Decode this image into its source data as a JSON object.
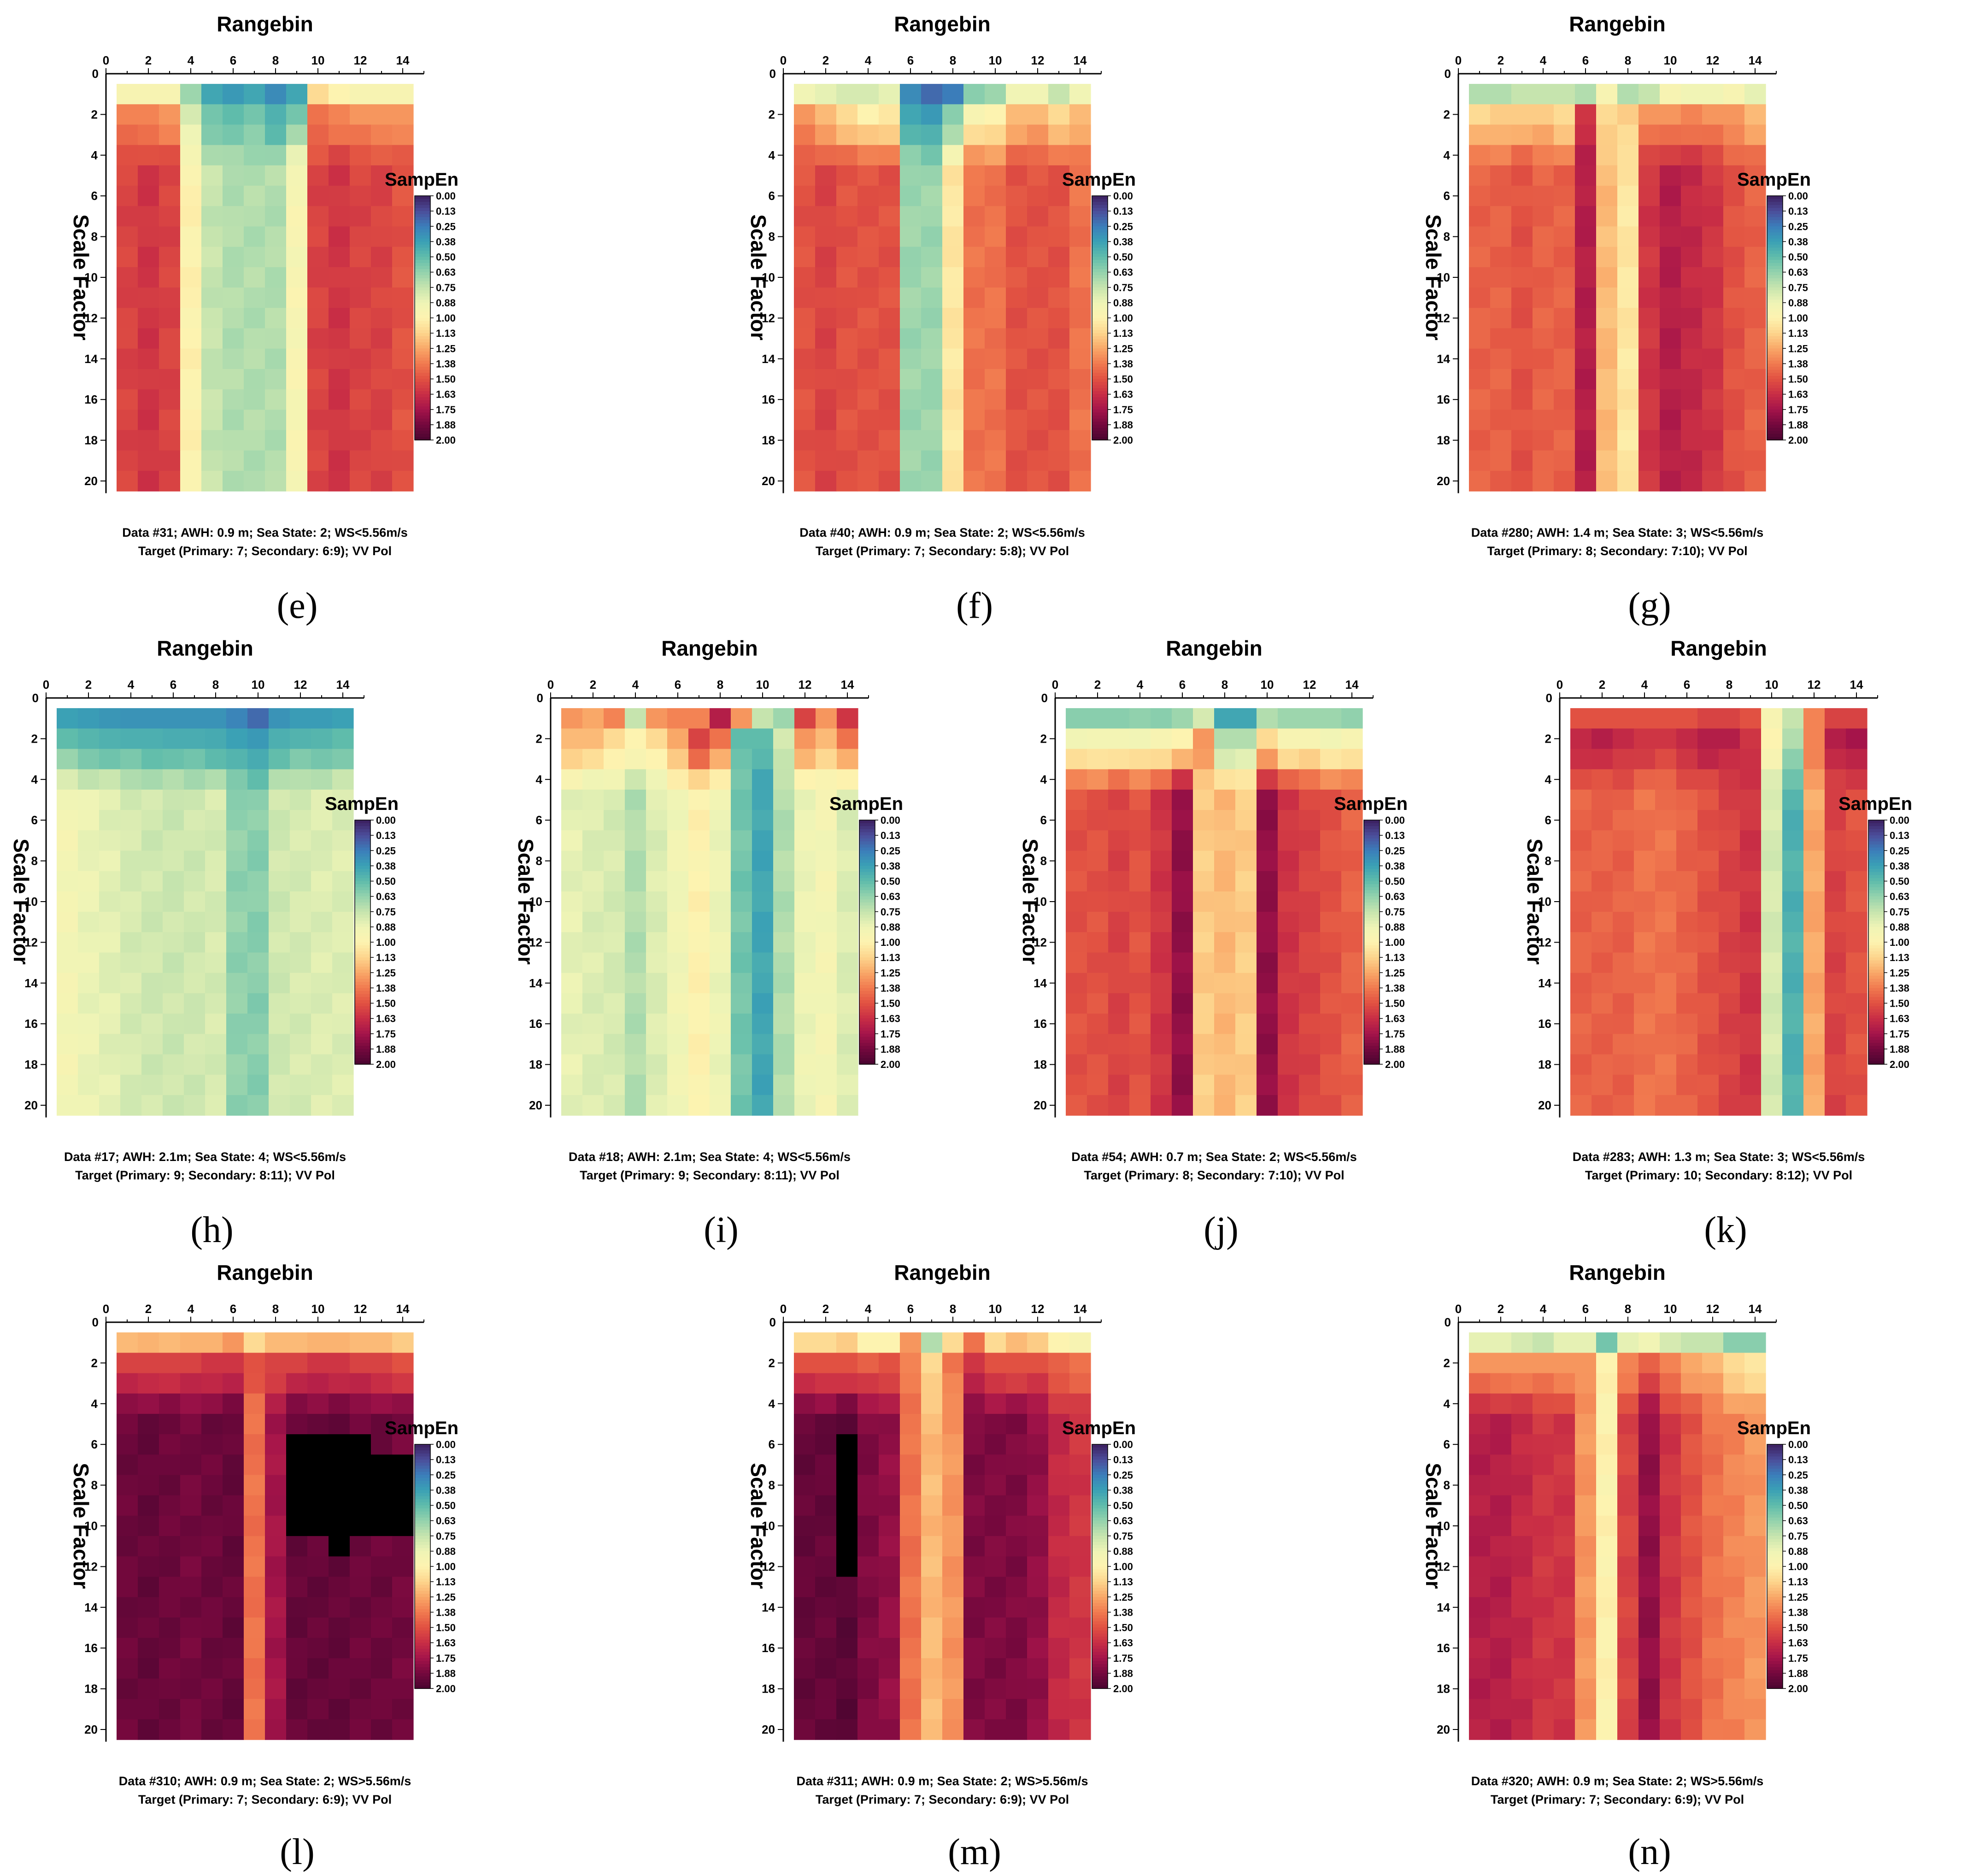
{
  "figure": {
    "colorbar": {
      "title": "SampEn",
      "ticks": [
        "0.00",
        "0.13",
        "0.25",
        "0.38",
        "0.50",
        "0.63",
        "0.75",
        "0.88",
        "1.00",
        "1.13",
        "1.25",
        "1.38",
        "1.50",
        "1.63",
        "1.75",
        "1.88",
        "2.00"
      ],
      "colormap": [
        "#3b1e5e",
        "#4c4d9a",
        "#3b7dba",
        "#3aa0b5",
        "#5fbcab",
        "#93d2ad",
        "#c6e4ae",
        "#eef4b6",
        "#fdf3b0",
        "#fdd58d",
        "#f9a868",
        "#f17a4f",
        "#e15142",
        "#c92e45",
        "#a5144a",
        "#74083d",
        "#4a0530"
      ],
      "missing_color": "#000000"
    },
    "shared": {
      "x_title": "Rangebin",
      "y_title": "Scale Factor",
      "x_ticks": [
        "0",
        "2",
        "4",
        "6",
        "8",
        "10",
        "12",
        "14"
      ],
      "y_ticks": [
        "2",
        "4",
        "6",
        "8",
        "10",
        "12",
        "14",
        "16",
        "18",
        "20"
      ]
    }
  },
  "chart_data": [
    {
      "label": "(e)",
      "type": "heatmap",
      "title": "Rangebin",
      "xlabel": "Rangebin",
      "ylabel": "Scale Factor",
      "xlim": [
        0,
        15
      ],
      "ylim": [
        0,
        20
      ],
      "caption_line1": "Data #31; AWH: 0.9 m; Sea State: 2; WS<5.56m/s",
      "caption_line2": "Target (Primary: 7; Secondary: 6:9); VV Pol",
      "model": {
        "row1": [
          0.95,
          0.95,
          0.95,
          0.65,
          0.4,
          0.35,
          0.4,
          0.3,
          0.4,
          1.1,
          1.0,
          0.95,
          0.95,
          0.95
        ],
        "row2": [
          1.35,
          1.35,
          1.3,
          0.8,
          0.55,
          0.5,
          0.55,
          0.45,
          0.55,
          1.4,
          1.35,
          1.3,
          1.3,
          1.3
        ],
        "deep": [
          1.55,
          1.6,
          1.55,
          1.0,
          0.75,
          0.7,
          0.7,
          0.7,
          0.95,
          1.55,
          1.6,
          1.55,
          1.55,
          1.5
        ]
      }
    },
    {
      "label": "(f)",
      "type": "heatmap",
      "title": "Rangebin",
      "xlabel": "Rangebin",
      "ylabel": "Scale Factor",
      "xlim": [
        0,
        15
      ],
      "ylim": [
        0,
        20
      ],
      "caption_line1": "Data #40; AWH: 0.9 m; Sea State: 2; WS<5.56m/s",
      "caption_line2": "Target (Primary: 7; Secondary: 5:8); VV Pol",
      "model": {
        "row1": [
          0.9,
          0.85,
          0.8,
          0.8,
          0.85,
          0.3,
          0.2,
          0.25,
          0.6,
          0.65,
          0.9,
          0.9,
          0.75,
          0.9
        ],
        "row2": [
          1.3,
          1.2,
          1.1,
          1.0,
          1.05,
          0.4,
          0.35,
          0.6,
          0.95,
          1.0,
          1.2,
          1.2,
          1.1,
          1.2
        ],
        "deep": [
          1.5,
          1.55,
          1.5,
          1.5,
          1.5,
          0.65,
          0.65,
          1.05,
          1.4,
          1.4,
          1.5,
          1.5,
          1.5,
          1.4
        ]
      }
    },
    {
      "label": "(g)",
      "type": "heatmap",
      "title": "Rangebin",
      "xlabel": "Rangebin",
      "ylabel": "Scale Factor",
      "xlim": [
        0,
        15
      ],
      "ylim": [
        0,
        20
      ],
      "caption_line1": "Data #280; AWH: 1.4 m; Sea State: 3; WS<5.56m/s",
      "caption_line2": "Target (Primary: 8; Secondary: 7:10); VV Pol",
      "model": {
        "row1": [
          0.7,
          0.7,
          0.75,
          0.75,
          0.75,
          0.7,
          0.95,
          0.7,
          0.75,
          0.95,
          0.9,
          0.9,
          0.95,
          0.85
        ],
        "row2": [
          1.1,
          1.15,
          1.15,
          1.15,
          1.1,
          1.6,
          1.1,
          1.15,
          1.3,
          1.3,
          1.35,
          1.3,
          1.3,
          1.2
        ],
        "deep": [
          1.45,
          1.45,
          1.5,
          1.45,
          1.45,
          1.7,
          1.2,
          1.05,
          1.6,
          1.7,
          1.65,
          1.6,
          1.5,
          1.45
        ]
      }
    },
    {
      "label": "(h)",
      "type": "heatmap",
      "title": "Rangebin",
      "xlabel": "Rangebin",
      "ylabel": "Scale Factor",
      "xlim": [
        0,
        15
      ],
      "ylim": [
        0,
        20
      ],
      "caption_line1": "Data #17; AWH: 2.1m; Sea State: 4; WS<5.56m/s",
      "caption_line2": "Target (Primary: 9; Secondary: 8:11); VV Pol",
      "model": {
        "row1": [
          0.38,
          0.36,
          0.34,
          0.33,
          0.33,
          0.33,
          0.33,
          0.33,
          0.28,
          0.2,
          0.33,
          0.36,
          0.36,
          0.38
        ],
        "row2": [
          0.5,
          0.47,
          0.45,
          0.44,
          0.44,
          0.43,
          0.43,
          0.42,
          0.38,
          0.35,
          0.44,
          0.46,
          0.47,
          0.5
        ],
        "deep": [
          0.92,
          0.87,
          0.84,
          0.8,
          0.78,
          0.77,
          0.78,
          0.8,
          0.62,
          0.6,
          0.78,
          0.8,
          0.82,
          0.82
        ]
      }
    },
    {
      "label": "(i)",
      "type": "heatmap",
      "title": "Rangebin",
      "xlabel": "Rangebin",
      "ylabel": "Scale Factor",
      "xlim": [
        0,
        15
      ],
      "ylim": [
        0,
        20
      ],
      "caption_line1": "Data #18; AWH: 2.1m; Sea State: 4; WS<5.56m/s",
      "caption_line2": "Target (Primary: 9; Secondary: 8:11); VV Pol",
      "model": {
        "row1": [
          1.3,
          1.25,
          1.35,
          0.75,
          1.3,
          1.35,
          1.35,
          1.7,
          1.3,
          0.75,
          0.65,
          1.55,
          1.3,
          1.6
        ],
        "row2": [
          1.2,
          1.2,
          1.1,
          1.0,
          1.1,
          1.25,
          1.55,
          1.4,
          0.5,
          0.5,
          0.8,
          1.3,
          1.2,
          1.4
        ],
        "deep": [
          0.85,
          0.82,
          0.8,
          0.7,
          0.82,
          0.9,
          1.0,
          0.88,
          0.55,
          0.4,
          0.7,
          0.88,
          0.92,
          0.82
        ]
      }
    },
    {
      "label": "(j)",
      "type": "heatmap",
      "title": "Rangebin",
      "xlabel": "Rangebin",
      "ylabel": "Scale Factor",
      "xlim": [
        0,
        15
      ],
      "ylim": [
        0,
        20
      ],
      "caption_line1": "Data #54; AWH: 0.7 m; Sea State: 2; WS<5.56m/s",
      "caption_line2": "Target (Primary: 8; Secondary: 7:10); VV Pol",
      "model": {
        "row1": [
          0.6,
          0.6,
          0.6,
          0.62,
          0.6,
          0.65,
          0.8,
          0.4,
          0.4,
          0.7,
          0.65,
          0.65,
          0.65,
          0.62
        ],
        "row2": [
          0.9,
          0.92,
          0.92,
          0.9,
          0.95,
          1.0,
          1.3,
          0.7,
          0.7,
          1.1,
          0.95,
          0.95,
          0.9,
          0.95
        ],
        "deep": [
          1.5,
          1.5,
          1.55,
          1.5,
          1.6,
          1.8,
          1.15,
          1.2,
          1.15,
          1.8,
          1.6,
          1.55,
          1.5,
          1.45
        ]
      }
    },
    {
      "label": "(k)",
      "type": "heatmap",
      "title": "Rangebin",
      "xlabel": "Rangebin",
      "ylabel": "Scale Factor",
      "xlim": [
        0,
        15
      ],
      "ylim": [
        0,
        20
      ],
      "caption_line1": "Data #283; AWH: 1.3 m; Sea State: 3; WS<5.56m/s",
      "caption_line2": "Target (Primary: 10; Secondary: 8:12); VV Pol",
      "model": {
        "row1": [
          1.5,
          1.5,
          1.5,
          1.5,
          1.5,
          1.5,
          1.55,
          1.55,
          1.5,
          0.95,
          0.75,
          1.35,
          1.55,
          1.55
        ],
        "row2": [
          1.65,
          1.7,
          1.65,
          1.6,
          1.6,
          1.65,
          1.7,
          1.7,
          1.6,
          1.0,
          0.7,
          1.35,
          1.7,
          1.75
        ],
        "deep": [
          1.45,
          1.45,
          1.45,
          1.4,
          1.4,
          1.45,
          1.5,
          1.55,
          1.6,
          0.8,
          0.45,
          1.25,
          1.55,
          1.5
        ]
      }
    },
    {
      "label": "(l)",
      "type": "heatmap",
      "title": "Rangebin",
      "xlabel": "Rangebin",
      "ylabel": "Scale Factor",
      "xlim": [
        0,
        15
      ],
      "ylim": [
        0,
        20
      ],
      "caption_line1": "Data #310; AWH: 0.9 m; Sea State: 2; WS>5.56m/s",
      "caption_line2": "Target (Primary: 7; Secondary: 6:9); VV Pol",
      "model": {
        "row1": [
          1.2,
          1.22,
          1.2,
          1.22,
          1.22,
          1.3,
          1.1,
          1.2,
          1.2,
          1.22,
          1.22,
          1.2,
          1.2,
          1.15
        ],
        "row2": [
          1.55,
          1.55,
          1.55,
          1.55,
          1.6,
          1.6,
          1.5,
          1.55,
          1.55,
          1.6,
          1.6,
          1.55,
          1.55,
          1.5
        ],
        "deep": [
          1.9,
          1.92,
          1.9,
          1.88,
          1.9,
          1.92,
          1.4,
          1.75,
          1.92,
          1.92,
          1.92,
          1.9,
          1.9,
          1.88
        ]
      },
      "missing": [
        [
          9,
          6
        ],
        [
          10,
          6
        ],
        [
          11,
          6
        ],
        [
          12,
          6
        ],
        [
          9,
          7
        ],
        [
          10,
          7
        ],
        [
          11,
          7
        ],
        [
          12,
          7
        ],
        [
          13,
          7
        ],
        [
          14,
          7
        ],
        [
          9,
          8
        ],
        [
          10,
          8
        ],
        [
          11,
          8
        ],
        [
          12,
          8
        ],
        [
          13,
          8
        ],
        [
          14,
          8
        ],
        [
          9,
          9
        ],
        [
          10,
          9
        ],
        [
          11,
          9
        ],
        [
          12,
          9
        ],
        [
          13,
          9
        ],
        [
          14,
          9
        ],
        [
          9,
          10
        ],
        [
          10,
          10
        ],
        [
          11,
          10
        ],
        [
          12,
          10
        ],
        [
          13,
          10
        ],
        [
          14,
          10
        ],
        [
          11,
          11
        ]
      ]
    },
    {
      "label": "(m)",
      "type": "heatmap",
      "title": "Rangebin",
      "xlabel": "Rangebin",
      "ylabel": "Scale Factor",
      "xlim": [
        0,
        15
      ],
      "ylim": [
        0,
        20
      ],
      "caption_line1": "Data #311; AWH: 0.9 m; Sea State: 2; WS>5.56m/s",
      "caption_line2": "Target (Primary: 7; Secondary: 6:9); VV Pol",
      "model": {
        "row1": [
          1.1,
          1.1,
          1.15,
          1.0,
          1.0,
          1.3,
          0.7,
          1.1,
          1.4,
          1.1,
          1.2,
          1.15,
          1.0,
          0.95
        ],
        "row2": [
          1.5,
          1.5,
          1.5,
          1.45,
          1.5,
          1.35,
          1.1,
          1.4,
          1.6,
          1.5,
          1.5,
          1.5,
          1.45,
          1.4
        ],
        "deep": [
          1.92,
          1.92,
          1.95,
          1.85,
          1.8,
          1.4,
          1.2,
          1.3,
          1.85,
          1.85,
          1.85,
          1.8,
          1.65,
          1.6
        ]
      },
      "missing": [
        [
          3,
          6
        ],
        [
          3,
          7
        ],
        [
          3,
          8
        ],
        [
          3,
          9
        ],
        [
          3,
          10
        ],
        [
          3,
          11
        ],
        [
          3,
          12
        ]
      ]
    },
    {
      "label": "(n)",
      "type": "heatmap",
      "title": "Rangebin",
      "xlabel": "Rangebin",
      "ylabel": "Scale Factor",
      "xlim": [
        0,
        15
      ],
      "ylim": [
        0,
        20
      ],
      "caption_line1": "Data #320; AWH: 0.9 m; Sea State: 2; WS>5.56m/s",
      "caption_line2": "Target (Primary: 7; Secondary: 6:9); VV Pol",
      "model": {
        "row1": [
          0.85,
          0.85,
          0.8,
          0.75,
          0.85,
          0.85,
          0.55,
          0.85,
          0.9,
          0.8,
          0.75,
          0.75,
          0.6,
          0.6
        ],
        "row2": [
          1.3,
          1.3,
          1.3,
          1.3,
          1.3,
          1.3,
          1.0,
          1.35,
          1.45,
          1.35,
          1.25,
          1.2,
          1.1,
          1.05
        ],
        "deep": [
          1.7,
          1.7,
          1.65,
          1.6,
          1.6,
          1.3,
          1.0,
          1.55,
          1.8,
          1.6,
          1.5,
          1.4,
          1.35,
          1.3
        ]
      }
    }
  ]
}
